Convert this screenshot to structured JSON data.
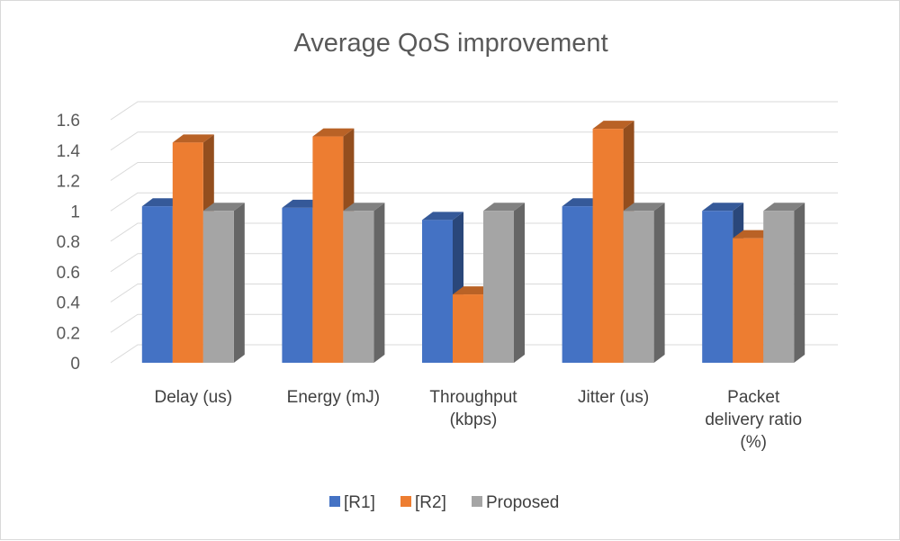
{
  "chart_data": {
    "type": "bar",
    "style": "3d-clustered-column",
    "title": "Average QoS improvement",
    "categories": [
      [
        "Delay (us)"
      ],
      [
        "Energy (mJ)"
      ],
      [
        "Throughput",
        "(kbps)"
      ],
      [
        "Jitter (us)"
      ],
      [
        "Packet",
        "delivery ratio",
        "(%)"
      ]
    ],
    "series": [
      {
        "name": "[R1]",
        "color": "#4472C4",
        "values": [
          1.03,
          1.02,
          0.94,
          1.03,
          1.0
        ]
      },
      {
        "name": "[R2]",
        "color": "#ED7D31",
        "values": [
          1.45,
          1.49,
          0.45,
          1.54,
          0.82
        ]
      },
      {
        "name": "Proposed",
        "color": "#A5A5A5",
        "values": [
          1.0,
          1.0,
          1.0,
          1.0,
          1.0
        ]
      }
    ],
    "yticks": [
      "0",
      "0.2",
      "0.4",
      "0.6",
      "0.8",
      "1",
      "1.2",
      "1.4",
      "1.6"
    ],
    "ylim": [
      0,
      1.6
    ],
    "grid": true,
    "legend_position": "bottom"
  }
}
